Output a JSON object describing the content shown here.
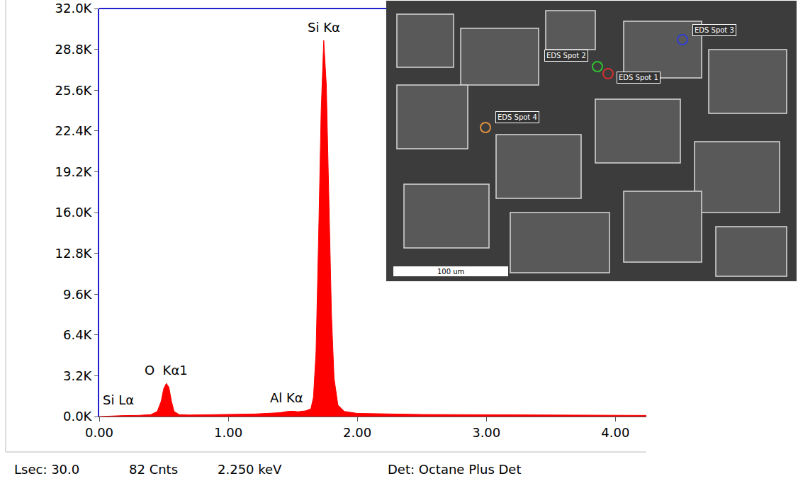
{
  "chart_data": {
    "type": "area",
    "color": "#ff0000",
    "x": [
      0.0,
      0.1,
      0.2,
      0.3,
      0.4,
      0.45,
      0.48,
      0.5,
      0.52,
      0.54,
      0.56,
      0.58,
      0.62,
      0.7,
      0.8,
      1.0,
      1.2,
      1.4,
      1.46,
      1.5,
      1.54,
      1.6,
      1.64,
      1.66,
      1.68,
      1.7,
      1.72,
      1.74,
      1.76,
      1.78,
      1.8,
      1.82,
      1.85,
      1.9,
      2.0,
      2.5,
      3.0,
      3.5,
      4.0,
      4.24
    ],
    "values": [
      0,
      50,
      80,
      90,
      150,
      400,
      1200,
      2200,
      2600,
      2300,
      1200,
      400,
      150,
      120,
      130,
      150,
      200,
      300,
      400,
      420,
      380,
      450,
      600,
      1500,
      5000,
      14000,
      24000,
      29500,
      26000,
      17000,
      8000,
      3000,
      900,
      400,
      250,
      160,
      130,
      110,
      100,
      90
    ],
    "xlim": [
      0,
      4.24
    ],
    "xticks": [
      {
        "value": 0,
        "label": "0.00"
      },
      {
        "value": 1,
        "label": "1.00"
      },
      {
        "value": 2,
        "label": "2.00"
      },
      {
        "value": 3,
        "label": "3.00"
      },
      {
        "value": 4,
        "label": "4.00"
      }
    ],
    "ylim": [
      0,
      32000
    ],
    "yticks": [
      {
        "value": 0,
        "label": "0.0K"
      },
      {
        "value": 3200,
        "label": "3.2K"
      },
      {
        "value": 6400,
        "label": "6.4K"
      },
      {
        "value": 9600,
        "label": "9.6K"
      },
      {
        "value": 12800,
        "label": "12.8K"
      },
      {
        "value": 16000,
        "label": "16.0K"
      },
      {
        "value": 19200,
        "label": "19.2K"
      },
      {
        "value": 22400,
        "label": "22.4K"
      },
      {
        "value": 25600,
        "label": "25.6K"
      },
      {
        "value": 28800,
        "label": "28.8K"
      },
      {
        "value": 32000,
        "label": "32.0K"
      }
    ],
    "grid": false,
    "annotations": [
      {
        "text": "Si Kα",
        "x": 1.74,
        "y": 29500
      },
      {
        "text": "O  Kα1",
        "x": 0.52,
        "y": 2600
      },
      {
        "text": "Si Lα",
        "x": 0.15,
        "y": 300
      },
      {
        "text": "Al Kα",
        "x": 1.45,
        "y": 420
      }
    ],
    "footer": [
      "Lsec: 30.0",
      "82 Cnts",
      "2.250 keV",
      "Det: Octane Plus Det"
    ],
    "inset": {
      "spots": [
        {
          "label": "EDS Spot 1",
          "color": "#d03030"
        },
        {
          "label": "EDS Spot 2",
          "color": "#30c030"
        },
        {
          "label": "EDS Spot 3",
          "color": "#3040d0"
        },
        {
          "label": "EDS Spot 4",
          "color": "#e09040"
        }
      ],
      "scale_bar": "100 um"
    }
  }
}
